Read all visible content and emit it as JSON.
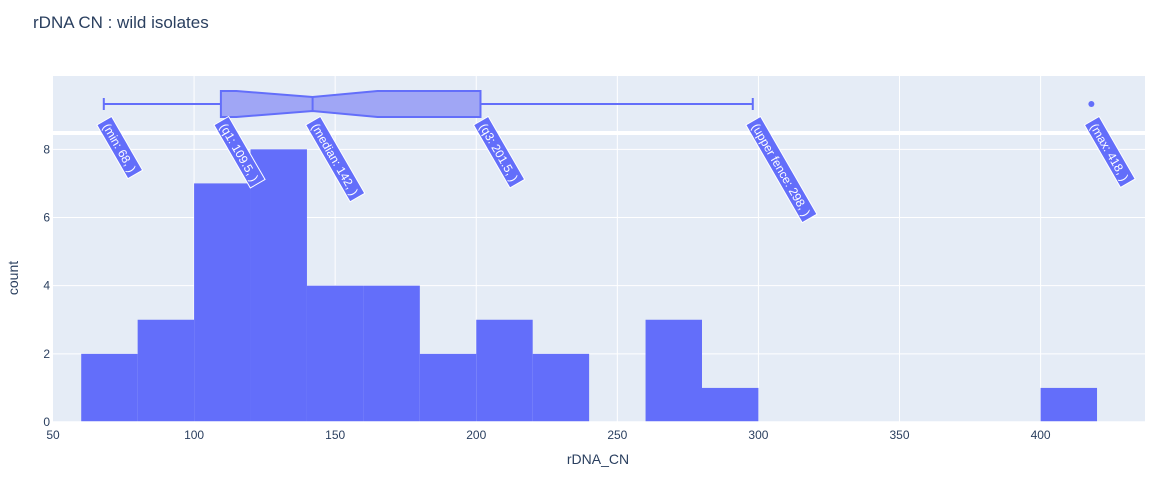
{
  "chart_data": {
    "type": "bar",
    "title": "rDNA CN : wild isolates",
    "xlabel": "rDNA_CN",
    "ylabel": "count",
    "xlim": [
      50,
      437
    ],
    "ylim": [
      0,
      8.42
    ],
    "x_ticks": [
      50,
      100,
      150,
      200,
      250,
      300,
      350,
      400
    ],
    "y_ticks": [
      0,
      2,
      4,
      6,
      8
    ],
    "color": "#636efa",
    "bin_width": 20,
    "bins": [
      {
        "start": 60,
        "end": 80,
        "count": 2
      },
      {
        "start": 80,
        "end": 100,
        "count": 3
      },
      {
        "start": 100,
        "end": 120,
        "count": 7
      },
      {
        "start": 120,
        "end": 140,
        "count": 8
      },
      {
        "start": 140,
        "end": 160,
        "count": 4
      },
      {
        "start": 160,
        "end": 180,
        "count": 4
      },
      {
        "start": 180,
        "end": 200,
        "count": 2
      },
      {
        "start": 200,
        "end": 220,
        "count": 3
      },
      {
        "start": 220,
        "end": 240,
        "count": 2
      },
      {
        "start": 240,
        "end": 260,
        "count": 0
      },
      {
        "start": 260,
        "end": 280,
        "count": 3
      },
      {
        "start": 280,
        "end": 300,
        "count": 1
      },
      {
        "start": 300,
        "end": 320,
        "count": 0
      },
      {
        "start": 320,
        "end": 340,
        "count": 0
      },
      {
        "start": 340,
        "end": 360,
        "count": 0
      },
      {
        "start": 360,
        "end": 380,
        "count": 0
      },
      {
        "start": 380,
        "end": 400,
        "count": 0
      },
      {
        "start": 400,
        "end": 420,
        "count": 1
      }
    ],
    "box": {
      "min": 68,
      "q1": 109.5,
      "median": 142,
      "q3": 201.5,
      "upper_fence": 298,
      "max": 418,
      "notch_low": 115,
      "notch_high": 165,
      "outliers": [
        418
      ]
    },
    "annotations": [
      {
        "label": "(min: 68, )",
        "x": 68
      },
      {
        "label": "(q1: 109.5, )",
        "x": 109.5
      },
      {
        "label": "(median: 142, )",
        "x": 142
      },
      {
        "label": "(q3: 201.5, )",
        "x": 201.5
      },
      {
        "label": "(upper fence: 298, )",
        "x": 298
      },
      {
        "label": "(max: 418, )",
        "x": 418
      }
    ]
  }
}
